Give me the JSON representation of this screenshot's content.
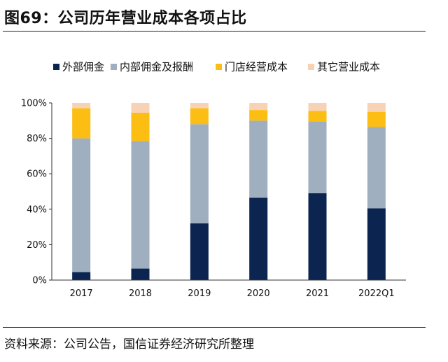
{
  "figure": {
    "title": "图69：公司历年营业成本各项占比",
    "source": "资料来源：公司公告，国信证券经济研究所整理"
  },
  "chart_data": {
    "type": "bar",
    "stacked": true,
    "percent": true,
    "categories": [
      "2017",
      "2018",
      "2019",
      "2020",
      "2021",
      "2022Q1"
    ],
    "series": [
      {
        "name": "外部佣金",
        "color": "#0b2550",
        "values": [
          4.5,
          6.5,
          32,
          46.5,
          49,
          40.5
        ]
      },
      {
        "name": "内部佣金及报酬",
        "color": "#9fafbf",
        "values": [
          75.5,
          72,
          56,
          43.5,
          40.5,
          46
        ]
      },
      {
        "name": "门店经营成本",
        "color": "#fcbe12",
        "values": [
          17,
          16,
          9,
          6,
          6,
          8.5
        ]
      },
      {
        "name": "其它营业成本",
        "color": "#f8d2b4",
        "values": [
          3,
          5.5,
          3,
          4,
          4.5,
          5
        ]
      }
    ],
    "yticks": [
      "0%",
      "20%",
      "40%",
      "60%",
      "80%",
      "100%"
    ],
    "ylim": [
      0,
      100
    ],
    "legend_position": "top",
    "grid": false
  }
}
